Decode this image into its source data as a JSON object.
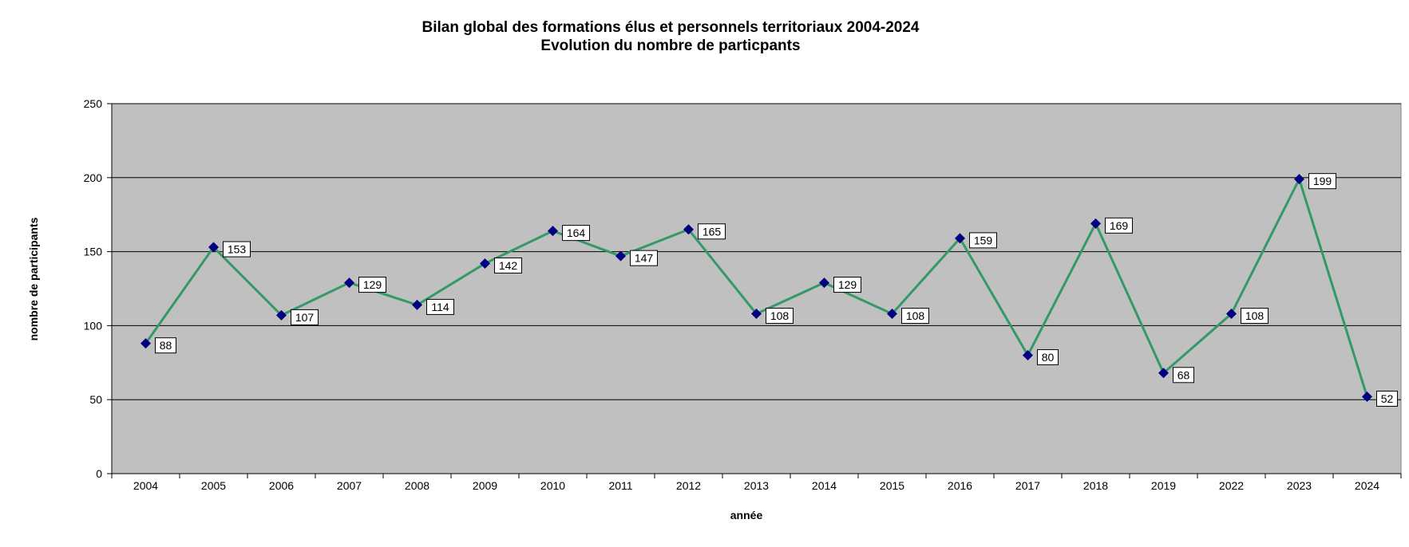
{
  "chart_data": {
    "type": "line",
    "title": "Bilan global des formations élus et personnels territoriaux 2004-2024",
    "subtitle": "Evolution du nombre de particpants",
    "xlabel": "année",
    "ylabel": "nombre de participants",
    "categories": [
      "2004",
      "2005",
      "2006",
      "2007",
      "2008",
      "2009",
      "2010",
      "2011",
      "2012",
      "2013",
      "2014",
      "2015",
      "2016",
      "2017",
      "2018",
      "2019",
      "2022",
      "2023",
      "2024"
    ],
    "series": [
      {
        "values": [
          88,
          153,
          107,
          129,
          114,
          142,
          164,
          147,
          165,
          108,
          129,
          108,
          159,
          80,
          169,
          68,
          108,
          199,
          52
        ]
      }
    ],
    "ylim": [
      0,
      250
    ],
    "yticks": [
      0,
      50,
      100,
      150,
      200,
      250
    ],
    "grid": true,
    "legend": "none",
    "colors": {
      "plot_background": "#c0c0c0",
      "line": "#339966",
      "marker": "#000080",
      "gridline": "#000000",
      "label_box": "#ffffff"
    }
  }
}
